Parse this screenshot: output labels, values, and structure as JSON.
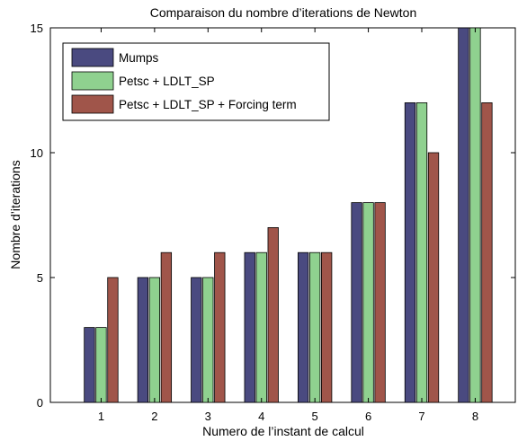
{
  "chart_data": {
    "type": "bar",
    "title": "Comparaison du nombre d’iterations de Newton",
    "xlabel": "Numero de l’instant de calcul",
    "ylabel": "Nombre d’iterations",
    "categories": [
      "1",
      "2",
      "3",
      "4",
      "5",
      "6",
      "7",
      "8"
    ],
    "ylim": [
      0,
      15
    ],
    "yticks": [
      "0",
      "5",
      "10",
      "15"
    ],
    "grid": false,
    "legend_position": "top-left",
    "series": [
      {
        "name": "Mumps",
        "color": "#4a4a80",
        "values": [
          3,
          5,
          5,
          6,
          6,
          8,
          12,
          15
        ]
      },
      {
        "name": "Petsc + LDLT_SP",
        "color": "#8fd18f",
        "values": [
          3,
          5,
          5,
          6,
          6,
          8,
          12,
          15
        ]
      },
      {
        "name": "Petsc + LDLT_SP + Forcing term",
        "color": "#a0554a",
        "values": [
          5,
          6,
          6,
          7,
          6,
          8,
          10,
          12
        ]
      }
    ]
  }
}
